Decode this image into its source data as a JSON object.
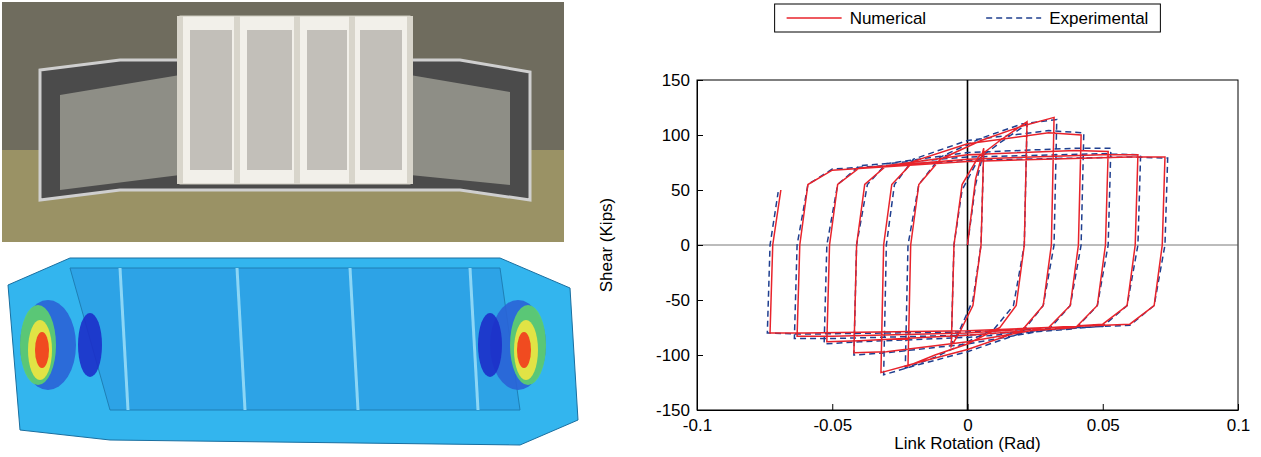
{
  "chart_data": {
    "type": "line",
    "xlabel": "Link Rotation (Rad)",
    "ylabel": "Shear (Kips)",
    "xlim": [
      -0.1,
      0.1
    ],
    "xticks": [
      -0.1,
      -0.05,
      0,
      0.05,
      0.1
    ],
    "ylim": [
      -150,
      150
    ],
    "yticks": [
      -150,
      -100,
      -50,
      0,
      50,
      100,
      150
    ],
    "grid": false,
    "legend": "top",
    "series": [
      {
        "name": "Numerical",
        "color": "#e8232b",
        "line_style": "solid",
        "x": [
          0,
          0.003,
          0.006,
          0.005,
          0.002,
          -0.003,
          -0.006,
          -0.005,
          -0.002,
          0.004,
          0.012,
          0.022,
          0.021,
          0.018,
          0.012,
          0,
          -0.012,
          -0.022,
          -0.021,
          -0.018,
          -0.01,
          0.005,
          0.02,
          0.032,
          0.031,
          0.028,
          0.02,
          0,
          -0.02,
          -0.032,
          -0.031,
          -0.028,
          -0.02,
          0,
          0.03,
          0.042,
          0.041,
          0.038,
          0.03,
          0,
          -0.03,
          -0.042,
          -0.041,
          -0.038,
          -0.03,
          0,
          0.04,
          0.052,
          0.051,
          0.048,
          0.04,
          0,
          -0.04,
          -0.052,
          -0.051,
          -0.048,
          -0.04,
          0,
          0.05,
          0.063,
          0.062,
          0.059,
          0.05,
          0,
          -0.05,
          -0.063,
          -0.062,
          -0.059,
          -0.05,
          0,
          0.06,
          0.073,
          0.072,
          0.069,
          0.06,
          0,
          -0.06,
          -0.073,
          -0.072,
          -0.069
        ],
        "values": [
          0,
          60,
          88,
          0,
          -55,
          -80,
          -92,
          0,
          55,
          80,
          95,
          112,
          0,
          -55,
          -75,
          -90,
          -100,
          -110,
          0,
          55,
          78,
          95,
          108,
          116,
          0,
          -55,
          -78,
          -95,
          -108,
          -116,
          0,
          55,
          76,
          92,
          102,
          100,
          0,
          -55,
          -75,
          -88,
          -97,
          -98,
          0,
          55,
          72,
          82,
          86,
          85,
          0,
          -55,
          -75,
          -82,
          -87,
          -88,
          0,
          55,
          70,
          78,
          82,
          82,
          0,
          -55,
          -72,
          -80,
          -83,
          -83,
          0,
          55,
          68,
          76,
          80,
          80,
          0,
          -55,
          -72,
          -78,
          -80,
          -80,
          0,
          50
        ]
      },
      {
        "name": "Experimental",
        "color": "#1f3f8f",
        "line_style": "dashed",
        "x": [
          0,
          0.003,
          0.006,
          0.005,
          0.002,
          -0.003,
          -0.006,
          -0.005,
          -0.002,
          0.004,
          0.012,
          0.022,
          0.021,
          0.017,
          0.01,
          0,
          -0.012,
          -0.023,
          -0.022,
          -0.018,
          -0.01,
          0.005,
          0.02,
          0.033,
          0.032,
          0.028,
          0.02,
          0,
          -0.02,
          -0.031,
          -0.03,
          -0.027,
          -0.02,
          0,
          0.03,
          0.043,
          0.042,
          0.038,
          0.03,
          0,
          -0.03,
          -0.042,
          -0.041,
          -0.037,
          -0.03,
          0,
          0.04,
          0.053,
          0.052,
          0.048,
          0.04,
          0,
          -0.04,
          -0.053,
          -0.052,
          -0.048,
          -0.04,
          0,
          0.05,
          0.064,
          0.063,
          0.059,
          0.05,
          0,
          -0.05,
          -0.064,
          -0.063,
          -0.059,
          -0.05,
          0,
          0.06,
          0.074,
          0.073,
          0.069,
          0.06,
          0,
          -0.06,
          -0.074,
          -0.073,
          -0.07
        ],
        "values": [
          0,
          55,
          85,
          0,
          -50,
          -78,
          -90,
          0,
          50,
          78,
          93,
          110,
          0,
          -55,
          -76,
          -88,
          -102,
          -112,
          0,
          55,
          80,
          97,
          110,
          114,
          0,
          -55,
          -80,
          -97,
          -110,
          -118,
          0,
          55,
          78,
          95,
          104,
          102,
          0,
          -55,
          -77,
          -90,
          -98,
          -100,
          0,
          55,
          74,
          84,
          88,
          88,
          0,
          -55,
          -76,
          -84,
          -88,
          -90,
          0,
          55,
          72,
          80,
          83,
          82,
          0,
          -55,
          -74,
          -82,
          -85,
          -85,
          0,
          55,
          69,
          77,
          80,
          79,
          0,
          -55,
          -73,
          -79,
          -81,
          -80,
          0,
          48
        ]
      }
    ]
  }
}
